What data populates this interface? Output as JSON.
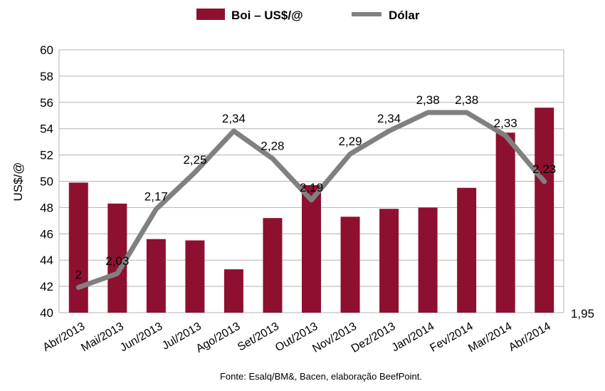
{
  "chart_data": {
    "type": "bar",
    "categories": [
      "Abr/2013",
      "Mai/2013",
      "Jun/2013",
      "Jul/2013",
      "Ago/2013",
      "Set/2013",
      "Out/2013",
      "Nov/2013",
      "Dez/2013",
      "Jan/2014",
      "Fev/2014",
      "Mar/2014",
      "Abr/2014"
    ],
    "series": [
      {
        "name": "Boi – US$/@",
        "type": "bar",
        "axis": "left",
        "color": "#8e1030",
        "values": [
          49.9,
          48.3,
          45.6,
          45.5,
          43.3,
          47.2,
          49.7,
          47.3,
          47.9,
          48.0,
          49.5,
          53.7,
          55.6
        ]
      },
      {
        "name": "Dólar",
        "type": "line",
        "axis": "right",
        "color": "#808080",
        "values": [
          2,
          2.03,
          2.17,
          2.25,
          2.34,
          2.28,
          2.19,
          2.29,
          2.34,
          2.38,
          2.38,
          2.33,
          2.23
        ],
        "labels": [
          "2",
          "2,03",
          "2,17",
          "2,25",
          "2,34",
          "2,28",
          "2,19",
          "2,29",
          "2,34",
          "2,38",
          "2,38",
          "2,33",
          "2,23"
        ]
      }
    ],
    "ylabel": "US$/@",
    "ylim": [
      40,
      60
    ],
    "yticks": [
      "40",
      "42",
      "44",
      "46",
      "48",
      "50",
      "52",
      "54",
      "56",
      "58",
      "60"
    ],
    "y2tick_label": "1,95",
    "grid": true,
    "legend_position": "top"
  },
  "source_note": "Fonte: Esalq/BM&, Bacen, elaboração BeefPoint."
}
